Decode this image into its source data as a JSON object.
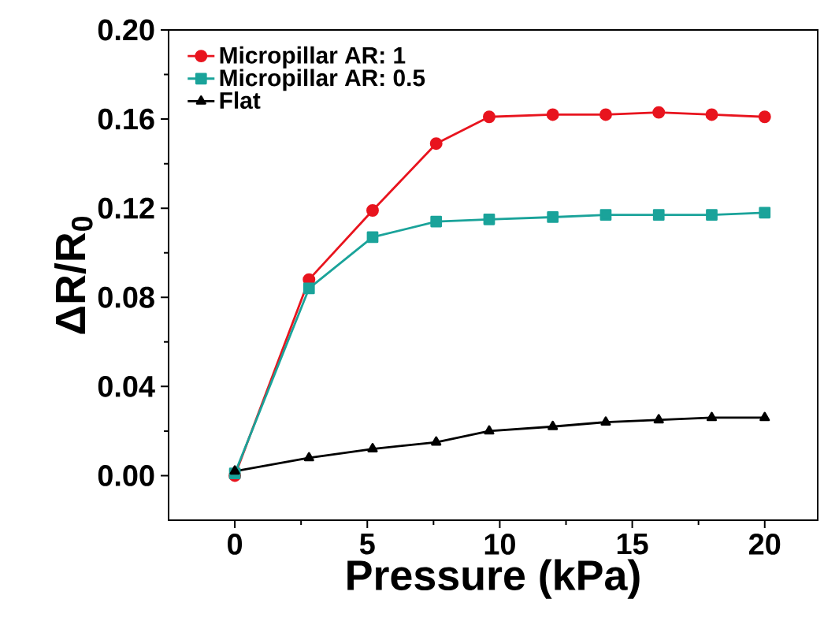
{
  "chart_data": {
    "type": "line",
    "xlabel": "Pressure (kPa)",
    "ylabel": "ΔR/R$_{0}$",
    "x": [
      0,
      2.8,
      5.2,
      7.6,
      9.6,
      12,
      14,
      16,
      18,
      20
    ],
    "series": [
      {
        "name": "Micropillar AR: 1",
        "color": "#e8141e",
        "marker": "circle",
        "values": [
          0.0,
          0.088,
          0.119,
          0.149,
          0.161,
          0.162,
          0.162,
          0.163,
          0.162,
          0.161
        ]
      },
      {
        "name": "Micropillar AR: 0.5",
        "color": "#1aa39a",
        "marker": "square",
        "values": [
          0.001,
          0.084,
          0.107,
          0.114,
          0.115,
          0.116,
          0.117,
          0.117,
          0.117,
          0.118
        ]
      },
      {
        "name": "Flat",
        "color": "#000000",
        "marker": "triangle",
        "values": [
          0.002,
          0.008,
          0.012,
          0.015,
          0.02,
          0.022,
          0.024,
          0.025,
          0.026,
          0.026
        ]
      }
    ],
    "xlim": [
      -2.5,
      22
    ],
    "ylim": [
      -0.02,
      0.2
    ],
    "xticks": [
      0,
      5,
      10,
      15,
      20
    ],
    "yticks": [
      {
        "value": 0,
        "label": "0.00"
      },
      {
        "value": 0.04,
        "label": "0.04"
      },
      {
        "value": 0.08,
        "label": "0.08"
      },
      {
        "value": 0.12,
        "label": "0.12"
      },
      {
        "value": 0.16,
        "label": "0.16"
      },
      {
        "value": 0.2,
        "label": "0.20"
      }
    ],
    "legend": "top left",
    "line_style": "solid"
  }
}
